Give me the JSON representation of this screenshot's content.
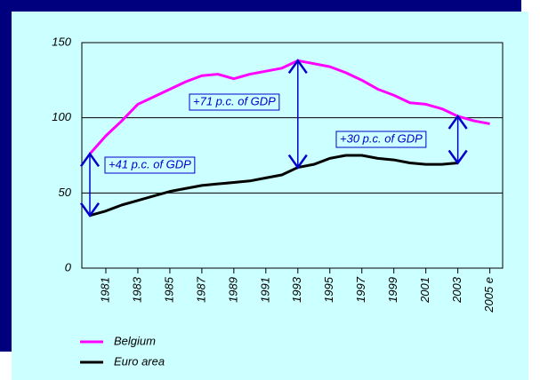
{
  "chart_data": {
    "type": "line",
    "x": [
      1980,
      1981,
      1982,
      1983,
      1984,
      1985,
      1986,
      1987,
      1988,
      1989,
      1990,
      1991,
      1992,
      1993,
      1994,
      1995,
      1996,
      1997,
      1998,
      1999,
      2000,
      2001,
      2002,
      2003,
      2004,
      2005
    ],
    "series": [
      {
        "name": "Belgium",
        "color": "#ff00ff",
        "values": [
          76,
          88,
          98,
          109,
          114,
          119,
          124,
          128,
          129,
          126,
          129,
          131,
          133,
          138,
          136,
          134,
          130,
          125,
          119,
          115,
          110,
          109,
          106,
          101,
          98,
          96
        ]
      },
      {
        "name": "Euro area",
        "color": "#000000",
        "values": [
          35,
          38,
          42,
          45,
          48,
          51,
          53,
          55,
          56,
          57,
          58,
          60,
          62,
          67,
          69,
          73,
          75,
          75,
          73,
          72,
          70,
          69,
          69,
          70,
          null,
          null
        ]
      }
    ],
    "xlim": [
      1979.5,
      2005.8
    ],
    "xticks": [
      1981,
      1983,
      1985,
      1987,
      1989,
      1991,
      1993,
      1995,
      1997,
      1999,
      2001,
      2003,
      {
        "value": 2005,
        "label": "2005 e"
      }
    ],
    "ylim": [
      0,
      150
    ],
    "yticks": [
      0,
      50,
      100,
      150
    ],
    "grid": true,
    "annotations": [
      {
        "text": "+41 p.c. of GDP",
        "x": 1980,
        "from": 35,
        "to": 76
      },
      {
        "text": "+71 p.c. of GDP",
        "x": 1993,
        "from": 67,
        "to": 138
      },
      {
        "text": "+30 p.c. of GDP",
        "x": 2003,
        "from": 70,
        "to": 101
      }
    ]
  }
}
